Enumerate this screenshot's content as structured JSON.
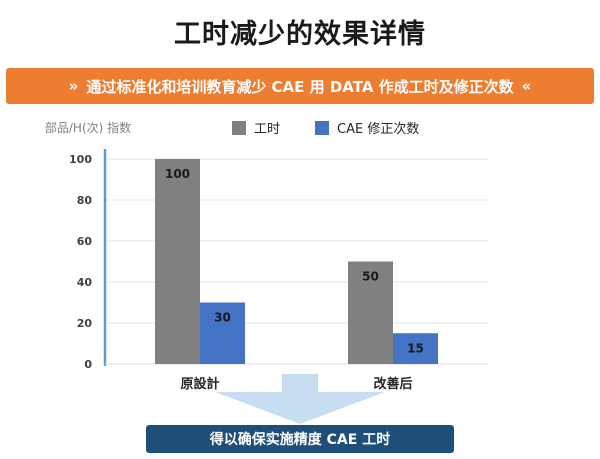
{
  "page": {
    "title": "工时减少的效果详情",
    "banner": {
      "left_mark": "»",
      "text": "通过标准化和培训教育减少 CAE 用 DATA 作成工时及修正次数",
      "right_mark": "«"
    },
    "footer": "得以确保实施精度 CAE 工时"
  },
  "colors": {
    "banner": "#ed7d31",
    "series_gray": "#808080",
    "series_blue": "#4472c4",
    "footer": "#1f4e79",
    "axis": "#5b9bd5",
    "arrow": "#bdd7ee"
  },
  "chart_data": {
    "type": "bar",
    "ylabel": "部品/H(次) 指数",
    "categories": [
      "原設計",
      "改善后"
    ],
    "series": [
      {
        "name": "工时",
        "values": [
          100,
          50
        ],
        "color": "#808080"
      },
      {
        "name": "CAE 修正次数",
        "values": [
          30,
          15
        ],
        "color": "#4472c4"
      }
    ],
    "ylim": [
      0,
      100
    ],
    "yticks": [
      0,
      20,
      40,
      60,
      80,
      100
    ],
    "data_labels": true,
    "grid": true,
    "legend": "top"
  }
}
